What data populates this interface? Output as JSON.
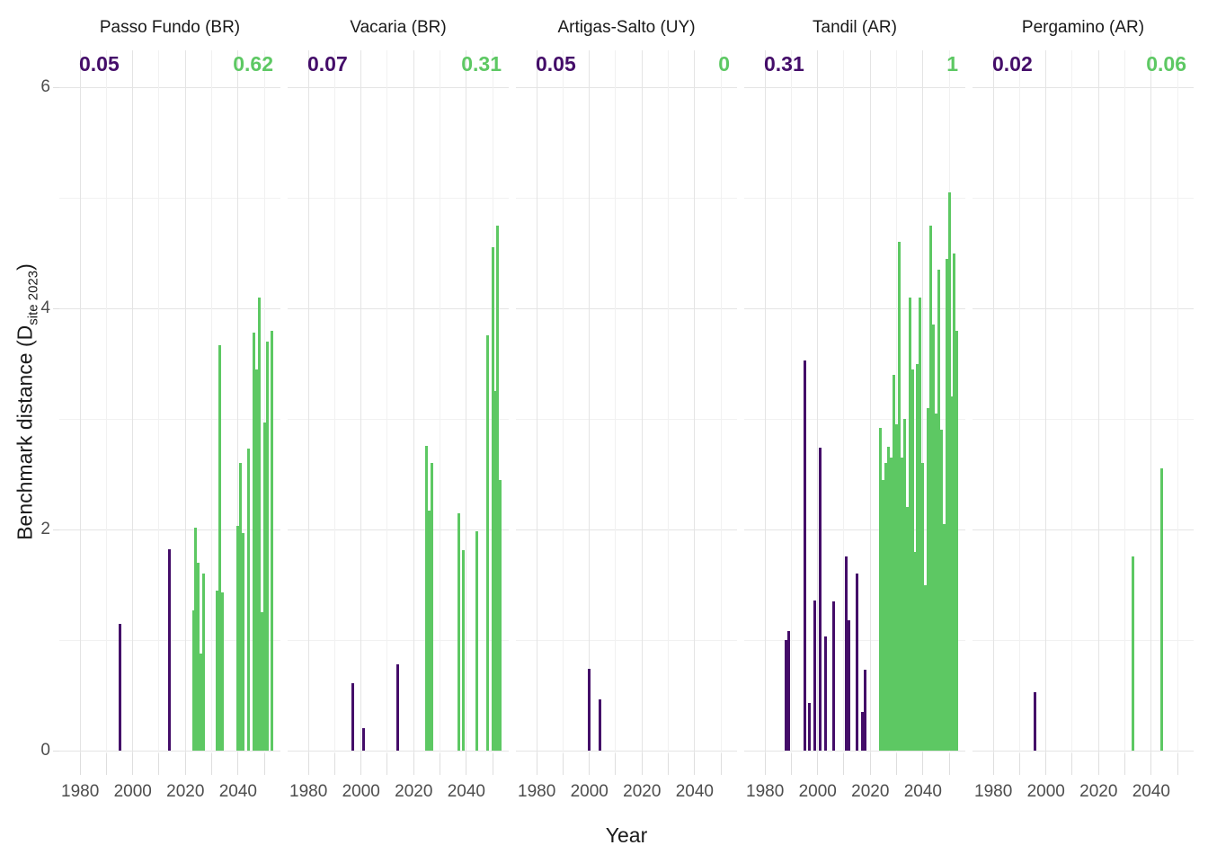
{
  "y_axis": {
    "title_prefix": "Benchmark distance (D",
    "title_sub": "site 2023",
    "title_suffix": ")",
    "tick_labels": [
      "0",
      "2",
      "4",
      "6"
    ],
    "tick_values": [
      0,
      2,
      4,
      6
    ],
    "minor_values": [
      1,
      3,
      5
    ]
  },
  "x_axis": {
    "title": "Year",
    "tick_labels": [
      "1980",
      "2000",
      "2020",
      "2040"
    ],
    "tick_values": [
      1980,
      2000,
      2020,
      2040
    ],
    "minor_values": [
      1990,
      2010,
      2030,
      2050
    ],
    "domain": [
      1972.1,
      2056.1
    ]
  },
  "colors": {
    "historical": "#440d69",
    "future": "#5dc863",
    "grid_major": "#e4e4e4",
    "grid_minor": "#f1f1f1",
    "tick_label": "#4d4d4d"
  },
  "chart_data": {
    "type": "bar",
    "ylabel": "Benchmark distance (D site 2023)",
    "xlabel": "Year",
    "ylim": [
      0,
      6.3
    ],
    "grid": "on",
    "facets": [
      {
        "title": "Passo Fundo (BR)",
        "benchmark_historical": "0.05",
        "benchmark_future": "0.62",
        "historical": [
          [
            1995,
            1.15
          ],
          [
            2014,
            1.82
          ]
        ],
        "future": [
          [
            2023,
            1.27
          ],
          [
            2024,
            2.02
          ],
          [
            2025,
            1.7
          ],
          [
            2026,
            0.88
          ],
          [
            2027,
            1.6
          ],
          [
            2032,
            1.45
          ],
          [
            2033,
            3.67
          ],
          [
            2034,
            1.43
          ],
          [
            2040,
            2.03
          ],
          [
            2041,
            2.6
          ],
          [
            2042,
            1.97
          ],
          [
            2044,
            2.73
          ],
          [
            2046,
            3.78
          ],
          [
            2047,
            3.45
          ],
          [
            2048,
            4.1
          ],
          [
            2049,
            1.25
          ],
          [
            2050,
            2.97
          ],
          [
            2051,
            3.7
          ],
          [
            2053,
            3.8
          ]
        ]
      },
      {
        "title": "Vacaria (BR)",
        "benchmark_historical": "0.07",
        "benchmark_future": "0.31",
        "historical": [
          [
            1997,
            0.61
          ],
          [
            2001,
            0.2
          ],
          [
            2014,
            0.78
          ]
        ],
        "future": [
          [
            2025,
            2.76
          ],
          [
            2026,
            2.17
          ],
          [
            2027,
            2.6
          ],
          [
            2037,
            2.15
          ],
          [
            2039,
            1.81
          ],
          [
            2044,
            1.98
          ],
          [
            2048,
            3.76
          ],
          [
            2050,
            4.55
          ],
          [
            2051,
            3.25
          ],
          [
            2052,
            4.75
          ],
          [
            2053,
            2.45
          ]
        ]
      },
      {
        "title": "Artigas-Salto (UY)",
        "benchmark_historical": "0.05",
        "benchmark_future": "0",
        "historical": [
          [
            2000,
            0.74
          ],
          [
            2004,
            0.46
          ]
        ],
        "future": []
      },
      {
        "title": "Tandil (AR)",
        "benchmark_historical": "0.31",
        "benchmark_future": "1",
        "historical": [
          [
            1988,
            1.0
          ],
          [
            1989,
            1.08
          ],
          [
            1995,
            3.53
          ],
          [
            1997,
            0.43
          ],
          [
            1999,
            1.36
          ],
          [
            2001,
            2.74
          ],
          [
            2003,
            1.03
          ],
          [
            2006,
            1.35
          ],
          [
            2011,
            1.76
          ],
          [
            2012,
            1.18
          ],
          [
            2015,
            1.6
          ],
          [
            2017,
            0.35
          ],
          [
            2018,
            0.73
          ]
        ],
        "future": [
          [
            2024,
            2.92
          ],
          [
            2025,
            2.45
          ],
          [
            2026,
            2.6
          ],
          [
            2027,
            2.75
          ],
          [
            2028,
            2.65
          ],
          [
            2029,
            3.4
          ],
          [
            2030,
            2.95
          ],
          [
            2031,
            4.6
          ],
          [
            2032,
            2.65
          ],
          [
            2033,
            3.0
          ],
          [
            2034,
            2.2
          ],
          [
            2035,
            4.1
          ],
          [
            2036,
            3.45
          ],
          [
            2037,
            1.8
          ],
          [
            2038,
            3.5
          ],
          [
            2039,
            4.1
          ],
          [
            2040,
            2.6
          ],
          [
            2041,
            1.5
          ],
          [
            2042,
            3.1
          ],
          [
            2043,
            4.75
          ],
          [
            2044,
            3.85
          ],
          [
            2045,
            3.05
          ],
          [
            2046,
            4.35
          ],
          [
            2047,
            2.9
          ],
          [
            2048,
            2.05
          ],
          [
            2049,
            4.45
          ],
          [
            2050,
            5.05
          ],
          [
            2051,
            3.2
          ],
          [
            2052,
            4.5
          ],
          [
            2053,
            3.8
          ]
        ]
      },
      {
        "title": "Pergamino (AR)",
        "benchmark_historical": "0.02",
        "benchmark_future": "0.06",
        "historical": [
          [
            1996,
            0.53
          ]
        ],
        "future": [
          [
            2033,
            1.76
          ],
          [
            2044,
            2.55
          ]
        ]
      }
    ]
  }
}
